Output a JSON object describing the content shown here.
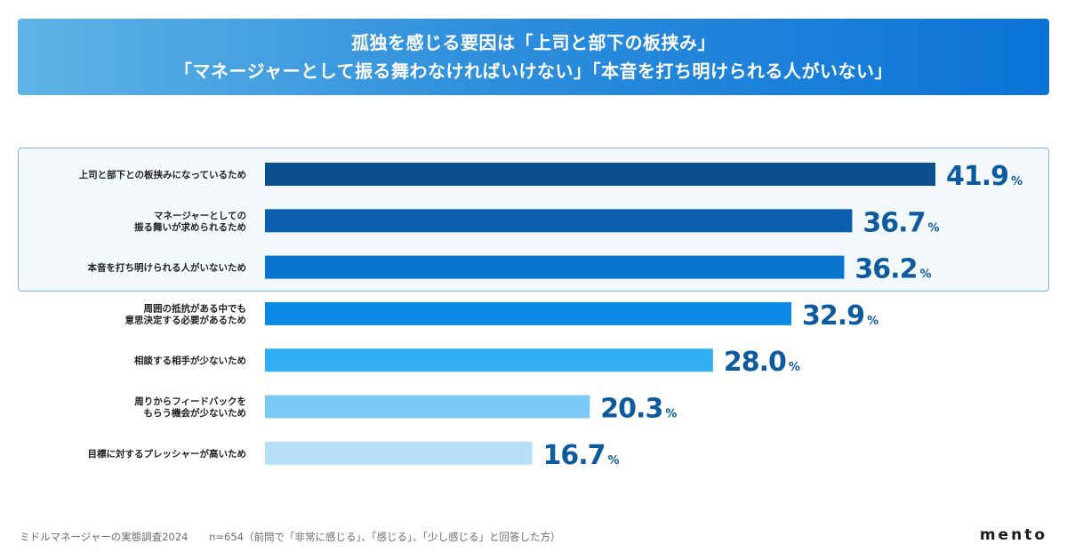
{
  "header": {
    "line1": "孤独を感じる要因は「上司と部下の板挟み」",
    "line2": "「マネージャーとして振る舞わなければいけない」「本音を打ち明けられる人がいない」"
  },
  "footer": {
    "survey": "ミドルマネージャーの実態調査2024",
    "note": "n=654（前問で「非常に感じる」、「感じる」、「少し感じる」と回答した方）",
    "logo": "mento"
  },
  "chart_data": {
    "type": "bar",
    "orientation": "horizontal",
    "unit": "%",
    "highlighted_top": 3,
    "categories": [
      "上司と部下との板挟みになっているため",
      "マネージャーとしての\n振る舞いが求められるため",
      "本音を打ち明けられる人がいないため",
      "周囲の抵抗がある中でも\n意思決定する必要があるため",
      "相談する相手が少ないため",
      "周りからフィードバックを\nもらう機会が少ないため",
      "目標に対するプレッシャーが高いため"
    ],
    "values": [
      41.9,
      36.7,
      36.2,
      32.9,
      28.0,
      20.3,
      16.7
    ],
    "value_labels": [
      "41.9",
      "36.7",
      "36.2",
      "32.9",
      "28.0",
      "20.3",
      "16.7"
    ],
    "colors": [
      "#0b4f8e",
      "#0c5fae",
      "#0a74cf",
      "#0c8ae3",
      "#33aef2",
      "#7ccaf6",
      "#b6dff9"
    ],
    "xlim": [
      0,
      41.9
    ]
  }
}
